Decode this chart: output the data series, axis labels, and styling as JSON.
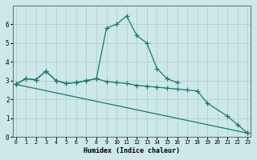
{
  "xlabel": "Humidex (Indice chaleur)",
  "bg_color": "#cce8e8",
  "line_color": "#1a7a6e",
  "grid_color": "#aacccc",
  "line1_x": [
    0,
    1,
    2,
    3,
    4,
    5,
    6,
    7,
    8,
    9,
    10,
    11,
    12,
    13,
    14,
    15,
    16
  ],
  "line1_y": [
    2.8,
    3.1,
    3.05,
    3.5,
    3.0,
    2.85,
    2.9,
    3.0,
    3.1,
    5.8,
    6.0,
    6.45,
    5.4,
    5.0,
    3.65,
    3.1,
    2.9
  ],
  "line2_x": [
    0,
    1,
    2,
    3,
    4,
    5,
    6,
    7,
    8,
    9,
    10,
    11,
    12,
    13,
    14,
    15,
    16,
    17,
    18,
    19,
    21,
    22,
    23
  ],
  "line2_y": [
    2.8,
    3.1,
    3.05,
    3.5,
    3.0,
    2.85,
    2.9,
    3.0,
    3.1,
    2.95,
    2.9,
    2.85,
    2.75,
    2.7,
    2.65,
    2.6,
    2.55,
    2.5,
    2.45,
    1.8,
    1.1,
    0.65,
    0.2
  ],
  "line3_x": [
    0,
    23
  ],
  "line3_y": [
    2.8,
    0.2
  ],
  "ylim": [
    0,
    7
  ],
  "xlim": [
    -0.3,
    23.3
  ],
  "yticks": [
    0,
    1,
    2,
    3,
    4,
    5,
    6
  ],
  "xticks": [
    0,
    1,
    2,
    3,
    4,
    5,
    6,
    7,
    8,
    9,
    10,
    11,
    12,
    13,
    14,
    15,
    16,
    17,
    18,
    19,
    20,
    21,
    22,
    23
  ]
}
